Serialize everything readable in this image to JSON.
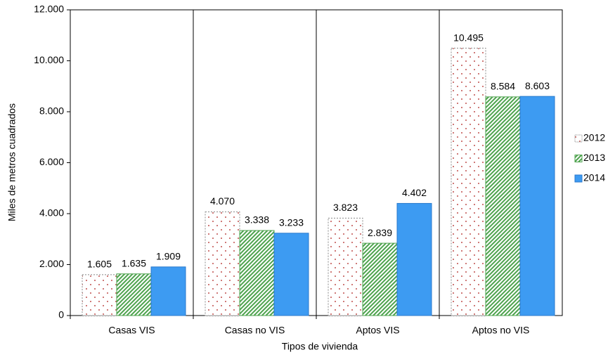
{
  "chart_data": {
    "type": "bar",
    "x_label": "Tipos de vivienda",
    "y_label": "Miles de metros cuadrados",
    "categories": [
      "Casas VIS",
      "Casas no VIS",
      "Aptos VIS",
      "Aptos no VIS"
    ],
    "series": [
      {
        "name": "2012",
        "color": "#c0504d",
        "pattern": "dots",
        "values": [
          1605,
          4070,
          3823,
          10495
        ],
        "value_labels": [
          "1.605",
          "4.070",
          "3.823",
          "10.495"
        ]
      },
      {
        "name": "2013",
        "color": "#4ea34e",
        "pattern": "stripes",
        "values": [
          1635,
          3338,
          2839,
          8584
        ],
        "value_labels": [
          "1.635",
          "3.338",
          "2.839",
          "8.584"
        ]
      },
      {
        "name": "2014",
        "color": "#3d9bf2",
        "pattern": "solid",
        "values": [
          1909,
          3233,
          4402,
          8603
        ],
        "value_labels": [
          "1.909",
          "3.233",
          "4.402",
          "8.603"
        ]
      }
    ],
    "ylim": [
      0,
      12000
    ],
    "yticks": [
      0,
      {
        "value": 2000,
        "label": "2.000"
      },
      {
        "value": 4000,
        "label": "4.000"
      },
      {
        "value": 6000,
        "label": "6.000"
      },
      {
        "value": 8000,
        "label": "8.000"
      },
      {
        "value": 10000,
        "label": "10.000"
      },
      {
        "value": 12000,
        "label": "12.000"
      }
    ],
    "grid": false,
    "legend": "right"
  }
}
